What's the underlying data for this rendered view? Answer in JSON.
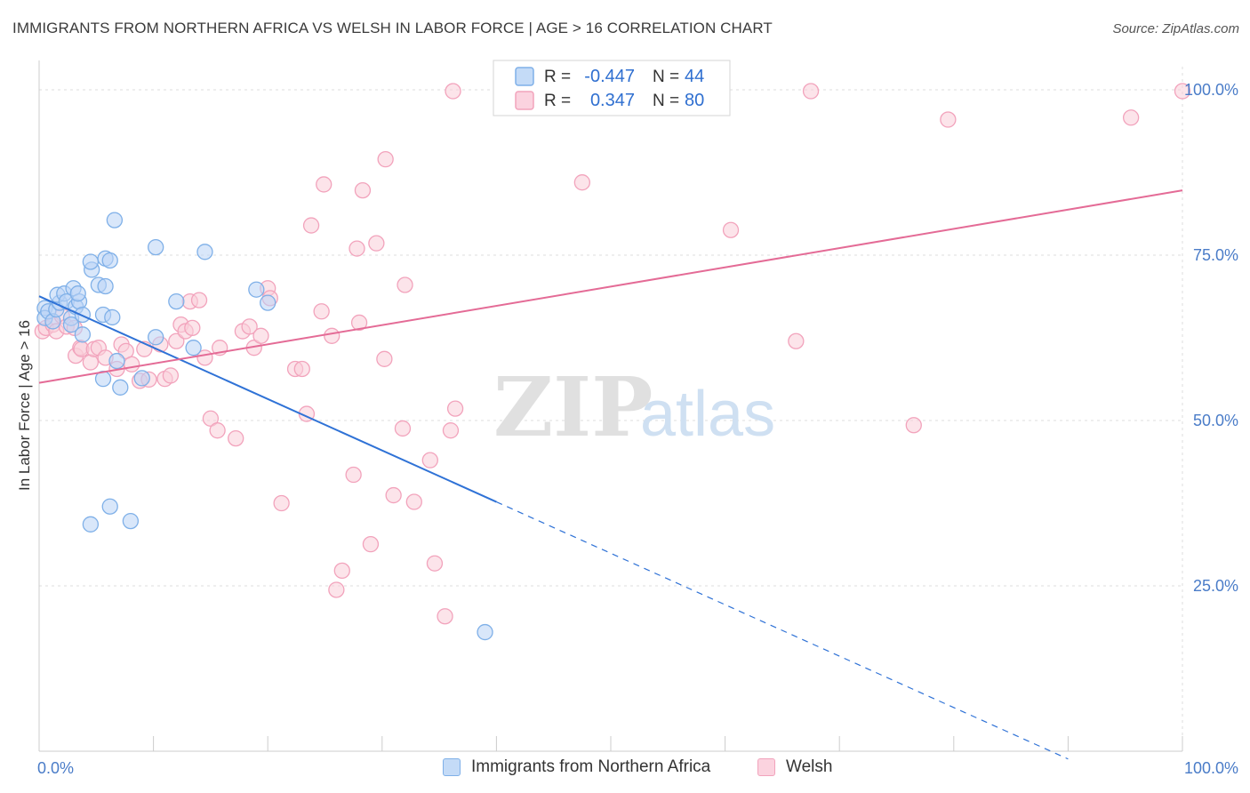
{
  "title": "IMMIGRANTS FROM NORTHERN AFRICA VS WELSH IN LABOR FORCE | AGE > 16 CORRELATION CHART",
  "source": "Source: ZipAtlas.com",
  "watermark": {
    "zip": "ZIP",
    "atlas": "atlas"
  },
  "legend_stats": [
    {
      "r_label": "R =",
      "r_value": "-0.447",
      "n_label": "N =",
      "n_value": "44",
      "color": "#7fb0e8"
    },
    {
      "r_label": "R =",
      "r_value": "0.347",
      "n_label": "N =",
      "n_value": "80",
      "color": "#f2a3bc"
    }
  ],
  "chart_data": {
    "type": "scatter",
    "title": "IMMIGRANTS FROM NORTHERN AFRICA VS WELSH IN LABOR FORCE | AGE > 16 CORRELATION CHART",
    "xlabel": "",
    "ylabel": "In Labor Force | Age > 16",
    "xlim": [
      0,
      100
    ],
    "ylim": [
      0,
      103.5
    ],
    "x_tick_labels": [
      "0.0%",
      "100.0%"
    ],
    "y_tick_labels": [
      "25.0%",
      "50.0%",
      "75.0%",
      "100.0%"
    ],
    "y_ticks": [
      25,
      50,
      75,
      100
    ],
    "grid": true,
    "legend_position": "bottom",
    "series": [
      {
        "name": "Immigrants from Northern Africa",
        "color": "#7fb0e8",
        "fill": "#b9d4f5",
        "r": -0.447,
        "n": 44,
        "trend": {
          "x0": 0,
          "y0": 68.8,
          "x1": 40,
          "y1": 37.7,
          "dashed_to_x": 90
        },
        "points": [
          [
            0.5,
            67
          ],
          [
            0.5,
            65.5
          ],
          [
            0.8,
            66.5
          ],
          [
            1.2,
            65
          ],
          [
            1.5,
            66.8
          ],
          [
            1.8,
            67.8
          ],
          [
            1.6,
            69
          ],
          [
            2.2,
            69.2
          ],
          [
            2.4,
            68
          ],
          [
            2.8,
            65.5
          ],
          [
            2.8,
            64.5
          ],
          [
            3,
            70
          ],
          [
            3.2,
            67.2
          ],
          [
            3.5,
            68
          ],
          [
            3.4,
            69.2
          ],
          [
            3.8,
            63
          ],
          [
            3.8,
            66
          ],
          [
            4.6,
            72.8
          ],
          [
            4.5,
            74
          ],
          [
            5.8,
            74.5
          ],
          [
            6.2,
            74.2
          ],
          [
            5.2,
            70.5
          ],
          [
            5.8,
            70.3
          ],
          [
            5.6,
            66
          ],
          [
            6.4,
            65.6
          ],
          [
            6.6,
            80.3
          ],
          [
            5.6,
            56.3
          ],
          [
            6.8,
            59
          ],
          [
            7.1,
            55
          ],
          [
            9,
            56.4
          ],
          [
            6.2,
            37
          ],
          [
            4.5,
            34.3
          ],
          [
            8,
            34.8
          ],
          [
            10.2,
            76.2
          ],
          [
            10.2,
            62.6
          ],
          [
            12,
            68
          ],
          [
            13.5,
            61
          ],
          [
            14.5,
            75.5
          ],
          [
            19,
            69.8
          ],
          [
            20,
            67.8
          ],
          [
            39,
            18
          ]
        ]
      },
      {
        "name": "Welsh",
        "color": "#f2a3bc",
        "fill": "#f9cdd9",
        "r": 0.347,
        "n": 80,
        "trend": {
          "x0": 0,
          "y0": 55.7,
          "x1": 100,
          "y1": 84.8
        },
        "points": [
          [
            0.3,
            63.5
          ],
          [
            0.6,
            64
          ],
          [
            1.2,
            64.5
          ],
          [
            1.5,
            63.5
          ],
          [
            2,
            65.8
          ],
          [
            2.4,
            64.2
          ],
          [
            3.1,
            64
          ],
          [
            3.2,
            59.8
          ],
          [
            3.6,
            61
          ],
          [
            3.7,
            60.8
          ],
          [
            4.5,
            58.8
          ],
          [
            4.8,
            60.8
          ],
          [
            5.2,
            61
          ],
          [
            5.8,
            59.5
          ],
          [
            6.8,
            57.8
          ],
          [
            7.2,
            61.5
          ],
          [
            7.6,
            60.5
          ],
          [
            8.1,
            58.5
          ],
          [
            8.8,
            56
          ],
          [
            9.2,
            60.8
          ],
          [
            9.6,
            56.2
          ],
          [
            10.6,
            61.5
          ],
          [
            11,
            56.3
          ],
          [
            11.5,
            56.8
          ],
          [
            12,
            62
          ],
          [
            12.4,
            64.5
          ],
          [
            12.8,
            63.5
          ],
          [
            13.2,
            68
          ],
          [
            13.4,
            64
          ],
          [
            14,
            68.2
          ],
          [
            14.5,
            59.5
          ],
          [
            15,
            50.3
          ],
          [
            15.6,
            48.5
          ],
          [
            15.8,
            61
          ],
          [
            17.2,
            47.3
          ],
          [
            17.8,
            63.5
          ],
          [
            18.4,
            64.2
          ],
          [
            18.8,
            61
          ],
          [
            19.4,
            62.8
          ],
          [
            20,
            70
          ],
          [
            20.2,
            68.5
          ],
          [
            21.2,
            37.5
          ],
          [
            22.4,
            57.8
          ],
          [
            23,
            57.8
          ],
          [
            23.4,
            51
          ],
          [
            23.8,
            79.5
          ],
          [
            24.7,
            66.5
          ],
          [
            24.9,
            85.7
          ],
          [
            25.6,
            62.8
          ],
          [
            26,
            24.4
          ],
          [
            26.5,
            27.3
          ],
          [
            27.5,
            41.8
          ],
          [
            27.8,
            76
          ],
          [
            28,
            64.8
          ],
          [
            28.3,
            84.8
          ],
          [
            29,
            31.3
          ],
          [
            29.5,
            76.8
          ],
          [
            30.2,
            59.3
          ],
          [
            30.3,
            89.5
          ],
          [
            31,
            38.7
          ],
          [
            31.8,
            48.8
          ],
          [
            32,
            70.5
          ],
          [
            32.8,
            37.7
          ],
          [
            34.2,
            44
          ],
          [
            34.6,
            28.4
          ],
          [
            35.5,
            20.4
          ],
          [
            36,
            48.5
          ],
          [
            36.4,
            51.8
          ],
          [
            36.2,
            99.8
          ],
          [
            41,
            99.8
          ],
          [
            47.5,
            86
          ],
          [
            60.5,
            78.8
          ],
          [
            66.2,
            62
          ],
          [
            67.5,
            99.8
          ],
          [
            76.5,
            49.3
          ],
          [
            79.5,
            95.5
          ],
          [
            95.5,
            95.8
          ],
          [
            100,
            99.8
          ]
        ]
      }
    ]
  }
}
